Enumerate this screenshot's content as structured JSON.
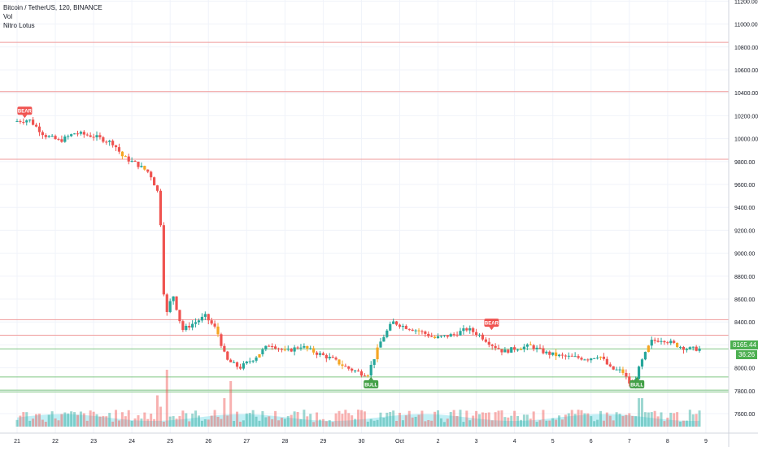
{
  "header": {
    "symbol_line": "Bitcoin / TetherUS, 120, BINANCE",
    "indicator_1": "Vol",
    "indicator_2": "Nitro Lotus"
  },
  "price_tags": {
    "last_price": "8165.44",
    "countdown": "36:26"
  },
  "colors": {
    "up": "#26a69a",
    "down": "#ef5350",
    "neutral": "#f5a623",
    "resistance": "#ef9a9a",
    "support": "#81c784",
    "volume_area": "#b2ebf2",
    "grid": "#f0f3fa",
    "last_price": "#4caf50"
  },
  "chart_data": {
    "type": "candlestick",
    "title": "Bitcoin / TetherUS, 120, BINANCE",
    "x_ticks": [
      "21",
      "22",
      "23",
      "24",
      "25",
      "26",
      "27",
      "28",
      "29",
      "30",
      "Oct",
      "2",
      "3",
      "4",
      "5",
      "6",
      "7",
      "8",
      "9"
    ],
    "y_ticks": [
      "11200.00",
      "11000.00",
      "10800.00",
      "10600.00",
      "10400.00",
      "10200.00",
      "10000.00",
      "9800.00",
      "9600.00",
      "9400.00",
      "9200.00",
      "9000.00",
      "8800.00",
      "8600.00",
      "8400.00",
      "8200.00",
      "8000.00",
      "7800.00",
      "7600.00"
    ],
    "ylim": [
      7430,
      11210
    ],
    "horizontal_levels": [
      {
        "price": 10840,
        "kind": "resistance"
      },
      {
        "price": 10410,
        "kind": "resistance"
      },
      {
        "price": 9820,
        "kind": "resistance"
      },
      {
        "price": 8420,
        "kind": "resistance"
      },
      {
        "price": 8285,
        "kind": "resistance"
      },
      {
        "price": 8165,
        "kind": "support"
      },
      {
        "price": 7920,
        "kind": "support"
      },
      {
        "price": 7805,
        "kind": "support"
      },
      {
        "price": 7790,
        "kind": "support"
      }
    ],
    "signals": [
      {
        "label": "BEAR",
        "day": 0.2,
        "price": 10180,
        "kind": "bear"
      },
      {
        "label": "BEAR",
        "day": 12.4,
        "price": 8330,
        "kind": "bear"
      },
      {
        "label": "BULL",
        "day": 9.25,
        "price": 7920,
        "kind": "bull"
      },
      {
        "label": "BULL",
        "day": 16.2,
        "price": 7920,
        "kind": "bull"
      }
    ],
    "price_path": [
      [
        0,
        10150
      ],
      [
        0.4,
        10165
      ],
      [
        0.8,
        10030
      ],
      [
        1.2,
        9980
      ],
      [
        1.6,
        10050
      ],
      [
        2.1,
        10020
      ],
      [
        2.6,
        9960
      ],
      [
        2.85,
        9840
      ],
      [
        3.2,
        9780
      ],
      [
        3.55,
        9700
      ],
      [
        3.8,
        9500
      ],
      [
        3.95,
        8420
      ],
      [
        4.15,
        8650
      ],
      [
        4.4,
        8330
      ],
      [
        4.7,
        8390
      ],
      [
        5.0,
        8450
      ],
      [
        5.3,
        8330
      ],
      [
        5.55,
        8070
      ],
      [
        5.9,
        8000
      ],
      [
        6.3,
        8090
      ],
      [
        6.7,
        8210
      ],
      [
        7.1,
        8140
      ],
      [
        7.5,
        8190
      ],
      [
        7.9,
        8130
      ],
      [
        8.3,
        8080
      ],
      [
        8.7,
        8000
      ],
      [
        9.1,
        7950
      ],
      [
        9.25,
        7950
      ],
      [
        9.6,
        8240
      ],
      [
        9.9,
        8400
      ],
      [
        10.2,
        8360
      ],
      [
        10.6,
        8320
      ],
      [
        11.0,
        8260
      ],
      [
        11.5,
        8290
      ],
      [
        11.85,
        8340
      ],
      [
        12.15,
        8290
      ],
      [
        12.5,
        8200
      ],
      [
        12.8,
        8140
      ],
      [
        13.1,
        8170
      ],
      [
        13.5,
        8190
      ],
      [
        13.9,
        8130
      ],
      [
        14.3,
        8100
      ],
      [
        14.7,
        8090
      ],
      [
        15.0,
        8080
      ],
      [
        15.3,
        8110
      ],
      [
        15.6,
        7990
      ],
      [
        15.9,
        7970
      ],
      [
        16.15,
        7830
      ],
      [
        16.4,
        8050
      ],
      [
        16.65,
        8230
      ],
      [
        16.95,
        8250
      ],
      [
        17.3,
        8200
      ],
      [
        17.6,
        8165
      ],
      [
        17.85,
        8165
      ]
    ],
    "volume_spikes": [
      {
        "day": 3.65,
        "level": 0.55
      },
      {
        "day": 3.75,
        "level": 0.35
      },
      {
        "day": 3.9,
        "level": 1.0
      },
      {
        "day": 5.4,
        "level": 0.5
      },
      {
        "day": 5.55,
        "level": 0.8
      },
      {
        "day": 16.3,
        "level": 0.5
      }
    ]
  }
}
